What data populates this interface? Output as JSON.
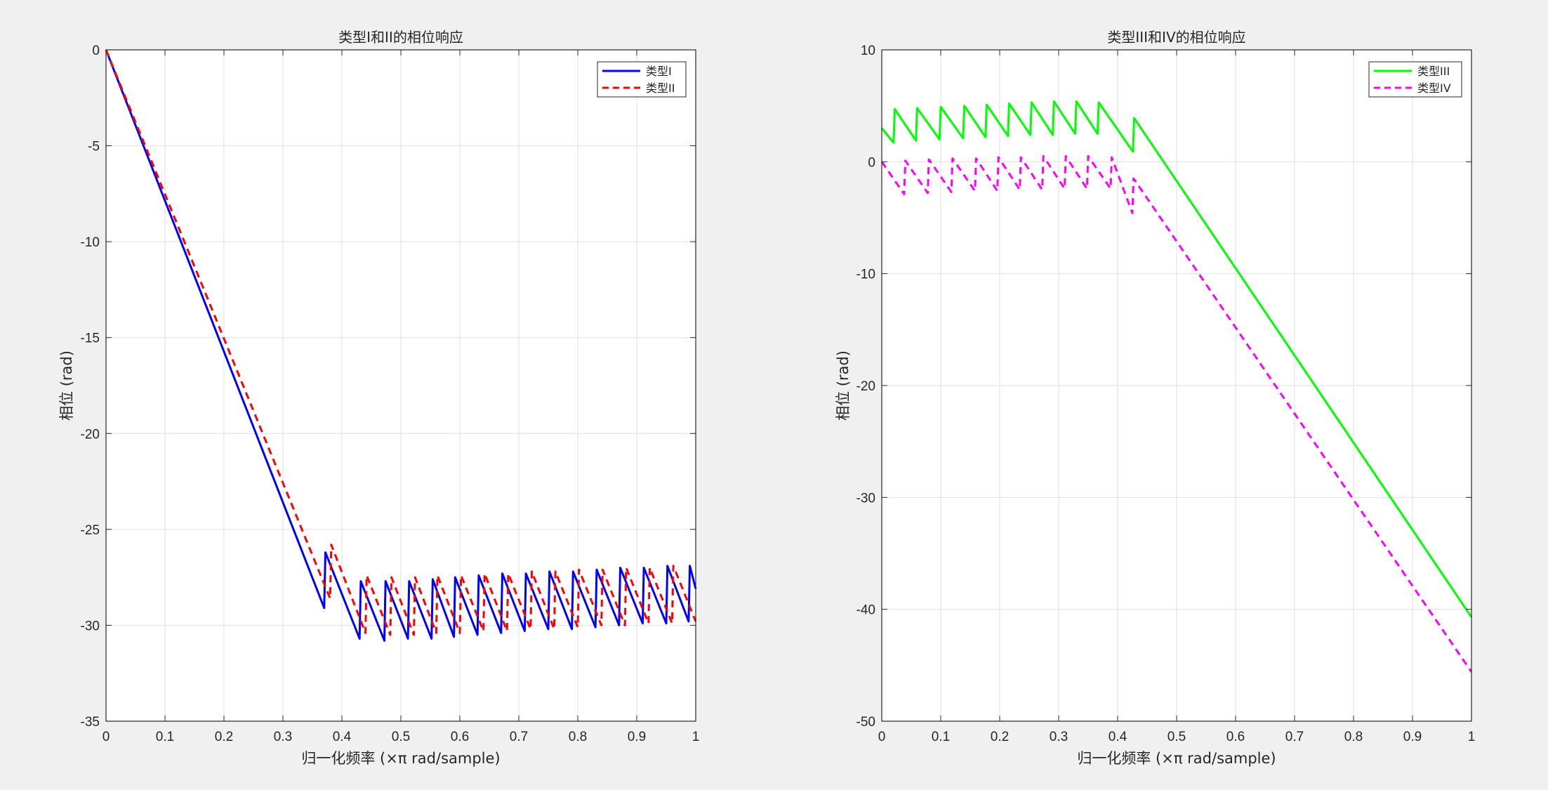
{
  "chart_data": [
    {
      "type": "line",
      "title": "类型I和II的相位响应",
      "xlabel": "归一化频率 (×π rad/sample)",
      "ylabel": "相位 (rad)",
      "xlim": [
        0,
        1
      ],
      "ylim": [
        -35,
        0
      ],
      "xticks": [
        "0",
        "0.1",
        "0.2",
        "0.3",
        "0.4",
        "0.5",
        "0.6",
        "0.7",
        "0.8",
        "0.9",
        "1"
      ],
      "yticks": [
        "0",
        "-5",
        "-10",
        "-15",
        "-20",
        "-25",
        "-30",
        "-35"
      ],
      "grid": true,
      "legend_position": "top-right",
      "series": [
        {
          "name": "类型I",
          "color": "#0000ff",
          "dash": "solid",
          "x": [
            0,
            0.37,
            0.372,
            0.43,
            0.432,
            0.472,
            0.474,
            0.512,
            0.514,
            0.552,
            0.554,
            0.59,
            0.592,
            0.63,
            0.632,
            0.67,
            0.672,
            0.71,
            0.712,
            0.75,
            0.752,
            0.79,
            0.792,
            0.83,
            0.832,
            0.87,
            0.872,
            0.91,
            0.912,
            0.95,
            0.952,
            0.988,
            0.99,
            1.0
          ],
          "y": [
            0,
            -29.1,
            -26.2,
            -30.7,
            -27.7,
            -30.8,
            -27.7,
            -30.7,
            -27.7,
            -30.7,
            -27.6,
            -30.6,
            -27.5,
            -30.5,
            -27.4,
            -30.4,
            -27.3,
            -30.3,
            -27.3,
            -30.2,
            -27.2,
            -30.2,
            -27.2,
            -30.1,
            -27.1,
            -30.0,
            -27.0,
            -29.9,
            -27.0,
            -29.9,
            -26.9,
            -29.8,
            -26.9,
            -28.1
          ]
        },
        {
          "name": "类型II",
          "color": "#ff0000",
          "dash": "dashed",
          "x": [
            0,
            0.38,
            0.382,
            0.44,
            0.442,
            0.482,
            0.484,
            0.522,
            0.524,
            0.56,
            0.562,
            0.6,
            0.602,
            0.64,
            0.642,
            0.68,
            0.682,
            0.72,
            0.722,
            0.76,
            0.762,
            0.8,
            0.802,
            0.84,
            0.842,
            0.88,
            0.882,
            0.92,
            0.922,
            0.96,
            0.962,
            1.0
          ],
          "y": [
            0,
            -28.6,
            -25.8,
            -30.4,
            -27.4,
            -30.5,
            -27.5,
            -30.5,
            -27.5,
            -30.4,
            -27.4,
            -30.4,
            -27.4,
            -30.3,
            -27.3,
            -30.3,
            -27.3,
            -30.2,
            -27.2,
            -30.2,
            -27.2,
            -30.1,
            -27.1,
            -30.0,
            -27.1,
            -30.0,
            -27.0,
            -29.9,
            -27.0,
            -29.9,
            -26.9,
            -29.8
          ]
        }
      ]
    },
    {
      "type": "line",
      "title": "类型III和IV的相位响应",
      "xlabel": "归一化频率 (×π rad/sample)",
      "ylabel": "相位 (rad)",
      "xlim": [
        0,
        1
      ],
      "ylim": [
        -50,
        10
      ],
      "xticks": [
        "0",
        "0.1",
        "0.2",
        "0.3",
        "0.4",
        "0.5",
        "0.6",
        "0.7",
        "0.8",
        "0.9",
        "1"
      ],
      "yticks": [
        "10",
        "0",
        "-10",
        "-20",
        "-30",
        "-40",
        "-50"
      ],
      "grid": true,
      "legend_position": "top-right",
      "series": [
        {
          "name": "类型III",
          "color": "#00ff00",
          "dash": "solid",
          "x": [
            0,
            0.02,
            0.022,
            0.058,
            0.06,
            0.098,
            0.1,
            0.138,
            0.14,
            0.176,
            0.178,
            0.214,
            0.216,
            0.252,
            0.254,
            0.29,
            0.292,
            0.328,
            0.33,
            0.366,
            0.368,
            0.426,
            0.428,
            1.0
          ],
          "y": [
            3.0,
            1.7,
            4.7,
            1.9,
            4.8,
            2.0,
            4.9,
            2.1,
            5.0,
            2.2,
            5.1,
            2.3,
            5.2,
            2.4,
            5.3,
            2.4,
            5.4,
            2.5,
            5.4,
            2.5,
            5.3,
            0.9,
            3.9,
            -40.7
          ]
        },
        {
          "name": "类型IV",
          "color": "#ff00ff",
          "dash": "dashed",
          "x": [
            0,
            0.038,
            0.04,
            0.078,
            0.08,
            0.118,
            0.12,
            0.158,
            0.16,
            0.196,
            0.198,
            0.234,
            0.236,
            0.272,
            0.274,
            0.31,
            0.312,
            0.348,
            0.35,
            0.388,
            0.39,
            0.425,
            0.427,
            1.0
          ],
          "y": [
            0,
            -2.9,
            0.1,
            -2.8,
            0.2,
            -2.7,
            0.3,
            -2.6,
            0.3,
            -2.6,
            0.4,
            -2.5,
            0.4,
            -2.5,
            0.5,
            -2.4,
            0.5,
            -2.4,
            0.5,
            -2.4,
            0.4,
            -4.6,
            -1.5,
            -45.6
          ]
        }
      ]
    }
  ]
}
